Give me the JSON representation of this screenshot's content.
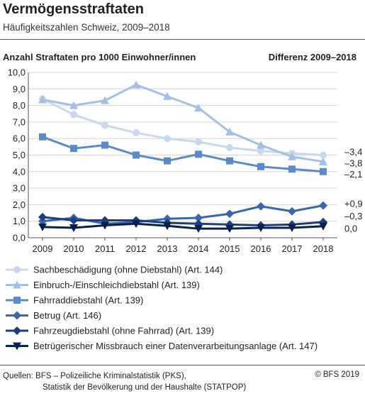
{
  "header": {
    "title": "Vermögensstraftaten",
    "subtitle": "Häufigkeitszahlen Schweiz, 2009–2018"
  },
  "chart_data": {
    "type": "line",
    "ylabel": "Anzahl Straftaten pro 1000 Einwohner/innen",
    "diff_label": "Differenz 2009–2018",
    "ylim": [
      0,
      10
    ],
    "y_ticks": [
      "0,0",
      "1,0",
      "2,0",
      "3,0",
      "4,0",
      "5,0",
      "6,0",
      "7,0",
      "8,0",
      "9,0",
      "10,0"
    ],
    "x": [
      "2009",
      "2010",
      "2011",
      "2012",
      "2013",
      "2014",
      "2015",
      "2016",
      "2017",
      "2018"
    ],
    "grid": true,
    "legend_position": "bottom",
    "series": [
      {
        "name": "Sachbeschädigung (ohne Diebstahl) (Art. 144)",
        "marker": "circle",
        "color": "#c8d9ee",
        "values": [
          8.4,
          7.45,
          6.8,
          6.35,
          6.0,
          5.8,
          5.45,
          5.25,
          5.1,
          5.0
        ]
      },
      {
        "name": "Einbruch-/Einschleichdiebstahl (Art. 139)",
        "marker": "triangle",
        "color": "#a3bfe3",
        "values": [
          8.35,
          8.0,
          8.3,
          9.25,
          8.55,
          7.85,
          6.4,
          5.6,
          4.9,
          4.6
        ]
      },
      {
        "name": "Fahrraddiebstahl (Art. 139)",
        "marker": "square",
        "color": "#5b8ac9",
        "values": [
          6.1,
          5.4,
          5.6,
          5.0,
          4.65,
          5.05,
          4.65,
          4.3,
          4.15,
          4.0
        ]
      },
      {
        "name": "Betrug (Art. 146)",
        "marker": "diamond",
        "color": "#3a66ae",
        "values": [
          1.0,
          1.2,
          0.85,
          0.95,
          1.15,
          1.2,
          1.45,
          1.9,
          1.6,
          1.95
        ]
      },
      {
        "name": "Fahrzeugdiebstahl (ohne Fahrrad) (Art. 139)",
        "marker": "diamond",
        "color": "#1d3f7e",
        "values": [
          1.25,
          1.05,
          1.05,
          1.05,
          0.9,
          0.85,
          0.8,
          0.75,
          0.8,
          0.95
        ]
      },
      {
        "name": "Betrügerischer Missbrauch einer Datenverarbeitungsanlage  (Art. 147)",
        "marker": "triangle-down",
        "color": "#0b1f4d",
        "values": [
          0.65,
          0.6,
          0.75,
          0.85,
          0.72,
          0.55,
          0.55,
          0.6,
          0.6,
          0.7
        ]
      }
    ],
    "differences": [
      {
        "label": "–3,4",
        "y": 5.2
      },
      {
        "label": "–3,8",
        "y": 4.5
      },
      {
        "label": "–2,1",
        "y": 3.85
      },
      {
        "label": "+0,9",
        "y": 2.05
      },
      {
        "label": "–0,3",
        "y": 1.3
      },
      {
        "label": "0,0",
        "y": 0.55
      }
    ]
  },
  "footer": {
    "source_line1": "Quellen: BFS – Polizeiliche Kriminalstatistik (PKS),",
    "source_line2": "Statistik der Bevölkerung und der Haushalte (STATPOP)",
    "copyright": "© BFS 2019"
  }
}
